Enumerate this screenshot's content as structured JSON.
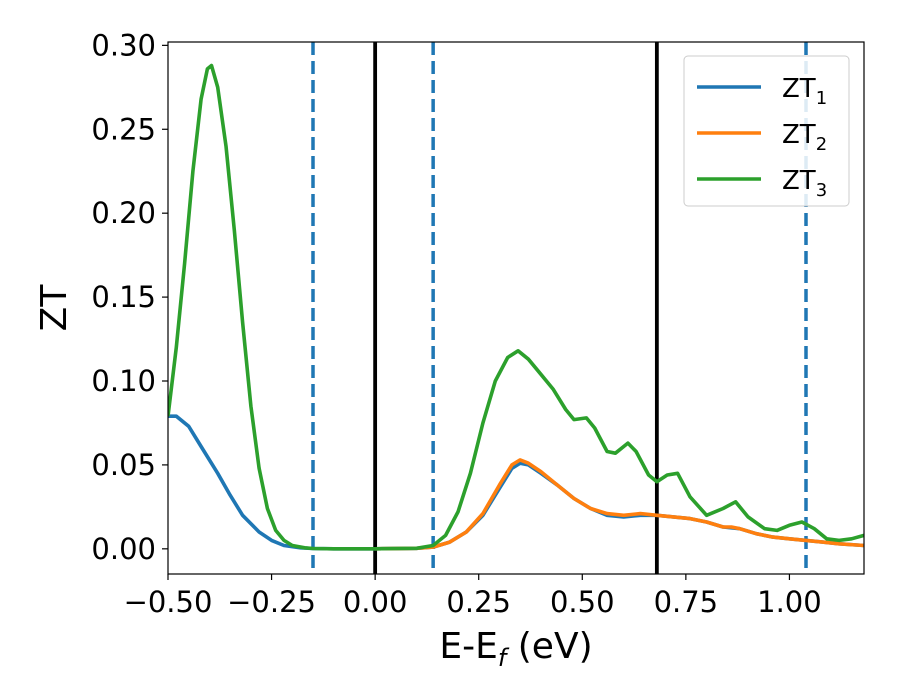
{
  "chart_data": {
    "type": "line",
    "ylabel": "ZT",
    "xlabel": {
      "main": "E-E",
      "sub": "f",
      "suffix": " (eV)"
    },
    "xlim": [
      -0.5,
      1.18
    ],
    "ylim": [
      -0.015,
      0.302
    ],
    "xticks": [
      {
        "value": -0.5,
        "label": "−0.50"
      },
      {
        "value": -0.25,
        "label": "−0.25"
      },
      {
        "value": 0.0,
        "label": "0.00"
      },
      {
        "value": 0.25,
        "label": "0.25"
      },
      {
        "value": 0.5,
        "label": "0.50"
      },
      {
        "value": 0.75,
        "label": "0.75"
      },
      {
        "value": 1.0,
        "label": "1.00"
      }
    ],
    "yticks": [
      {
        "value": 0.0,
        "label": "0.00"
      },
      {
        "value": 0.05,
        "label": "0.05"
      },
      {
        "value": 0.1,
        "label": "0.10"
      },
      {
        "value": 0.15,
        "label": "0.15"
      },
      {
        "value": 0.2,
        "label": "0.20"
      },
      {
        "value": 0.25,
        "label": "0.25"
      },
      {
        "value": 0.3,
        "label": "0.30"
      }
    ],
    "vlines": [
      {
        "x": -0.15,
        "style": "dashed",
        "color": "#1f77b4"
      },
      {
        "x": 0.0,
        "style": "solid",
        "color": "#000000"
      },
      {
        "x": 0.14,
        "style": "dashed",
        "color": "#1f77b4"
      },
      {
        "x": 0.68,
        "style": "solid",
        "color": "#000000"
      },
      {
        "x": 1.04,
        "style": "dashed",
        "color": "#1f77b4"
      }
    ],
    "legend_position": "top-right",
    "series": [
      {
        "name": "ZT",
        "sub": "1",
        "color": "#1f77b4",
        "points": [
          [
            -0.5,
            0.079
          ],
          [
            -0.48,
            0.079
          ],
          [
            -0.45,
            0.073
          ],
          [
            -0.42,
            0.061
          ],
          [
            -0.38,
            0.045
          ],
          [
            -0.35,
            0.032
          ],
          [
            -0.32,
            0.02
          ],
          [
            -0.28,
            0.01
          ],
          [
            -0.25,
            0.005
          ],
          [
            -0.22,
            0.002
          ],
          [
            -0.18,
            0.0006
          ],
          [
            -0.15,
            0.0002
          ],
          [
            -0.1,
            0.0
          ],
          [
            0.0,
            0.0
          ],
          [
            0.1,
            0.0003
          ],
          [
            0.14,
            0.001
          ],
          [
            0.18,
            0.004
          ],
          [
            0.22,
            0.01
          ],
          [
            0.26,
            0.02
          ],
          [
            0.3,
            0.036
          ],
          [
            0.33,
            0.048
          ],
          [
            0.35,
            0.051
          ],
          [
            0.37,
            0.05
          ],
          [
            0.4,
            0.045
          ],
          [
            0.44,
            0.038
          ],
          [
            0.48,
            0.03
          ],
          [
            0.52,
            0.024
          ],
          [
            0.56,
            0.02
          ],
          [
            0.6,
            0.019
          ],
          [
            0.64,
            0.02
          ],
          [
            0.68,
            0.02
          ],
          [
            0.72,
            0.019
          ],
          [
            0.76,
            0.018
          ],
          [
            0.8,
            0.016
          ],
          [
            0.84,
            0.013
          ],
          [
            0.88,
            0.012
          ],
          [
            0.92,
            0.009
          ],
          [
            0.96,
            0.007
          ],
          [
            1.0,
            0.006
          ],
          [
            1.04,
            0.005
          ],
          [
            1.08,
            0.004
          ],
          [
            1.12,
            0.003
          ],
          [
            1.18,
            0.002
          ]
        ]
      },
      {
        "name": "ZT",
        "sub": "2",
        "color": "#ff7f0e",
        "points": [
          [
            0.0,
            0.0
          ],
          [
            0.1,
            0.0003
          ],
          [
            0.14,
            0.001
          ],
          [
            0.18,
            0.004
          ],
          [
            0.22,
            0.01
          ],
          [
            0.26,
            0.021
          ],
          [
            0.3,
            0.038
          ],
          [
            0.33,
            0.05
          ],
          [
            0.35,
            0.053
          ],
          [
            0.37,
            0.051
          ],
          [
            0.4,
            0.046
          ],
          [
            0.44,
            0.038
          ],
          [
            0.48,
            0.03
          ],
          [
            0.52,
            0.024
          ],
          [
            0.56,
            0.021
          ],
          [
            0.6,
            0.02
          ],
          [
            0.64,
            0.021
          ],
          [
            0.68,
            0.02
          ],
          [
            0.72,
            0.019
          ],
          [
            0.76,
            0.018
          ],
          [
            0.8,
            0.016
          ],
          [
            0.84,
            0.013
          ],
          [
            0.86,
            0.013
          ],
          [
            0.88,
            0.012
          ],
          [
            0.92,
            0.009
          ],
          [
            0.96,
            0.007
          ],
          [
            1.0,
            0.006
          ],
          [
            1.04,
            0.005
          ],
          [
            1.08,
            0.004
          ],
          [
            1.12,
            0.003
          ],
          [
            1.18,
            0.002
          ]
        ]
      },
      {
        "name": "ZT",
        "sub": "3",
        "color": "#2ca02c",
        "points": [
          [
            -0.5,
            0.079
          ],
          [
            -0.48,
            0.12
          ],
          [
            -0.46,
            0.17
          ],
          [
            -0.44,
            0.225
          ],
          [
            -0.42,
            0.268
          ],
          [
            -0.405,
            0.286
          ],
          [
            -0.395,
            0.288
          ],
          [
            -0.38,
            0.275
          ],
          [
            -0.36,
            0.24
          ],
          [
            -0.34,
            0.19
          ],
          [
            -0.32,
            0.135
          ],
          [
            -0.3,
            0.085
          ],
          [
            -0.28,
            0.048
          ],
          [
            -0.26,
            0.024
          ],
          [
            -0.24,
            0.011
          ],
          [
            -0.22,
            0.005
          ],
          [
            -0.2,
            0.002
          ],
          [
            -0.17,
            0.0006
          ],
          [
            -0.15,
            0.0002
          ],
          [
            -0.1,
            0.0
          ],
          [
            0.0,
            0.0
          ],
          [
            0.1,
            0.0003
          ],
          [
            0.14,
            0.002
          ],
          [
            0.17,
            0.008
          ],
          [
            0.2,
            0.022
          ],
          [
            0.23,
            0.045
          ],
          [
            0.26,
            0.075
          ],
          [
            0.29,
            0.1
          ],
          [
            0.32,
            0.114
          ],
          [
            0.345,
            0.118
          ],
          [
            0.37,
            0.113
          ],
          [
            0.4,
            0.104
          ],
          [
            0.43,
            0.095
          ],
          [
            0.46,
            0.083
          ],
          [
            0.48,
            0.077
          ],
          [
            0.51,
            0.078
          ],
          [
            0.53,
            0.072
          ],
          [
            0.56,
            0.058
          ],
          [
            0.58,
            0.057
          ],
          [
            0.61,
            0.063
          ],
          [
            0.63,
            0.058
          ],
          [
            0.66,
            0.044
          ],
          [
            0.68,
            0.04
          ],
          [
            0.705,
            0.044
          ],
          [
            0.73,
            0.045
          ],
          [
            0.76,
            0.031
          ],
          [
            0.8,
            0.02
          ],
          [
            0.84,
            0.024
          ],
          [
            0.87,
            0.028
          ],
          [
            0.9,
            0.019
          ],
          [
            0.94,
            0.012
          ],
          [
            0.97,
            0.011
          ],
          [
            1.0,
            0.014
          ],
          [
            1.03,
            0.016
          ],
          [
            1.06,
            0.012
          ],
          [
            1.09,
            0.006
          ],
          [
            1.12,
            0.005
          ],
          [
            1.15,
            0.006
          ],
          [
            1.18,
            0.008
          ]
        ]
      }
    ]
  }
}
